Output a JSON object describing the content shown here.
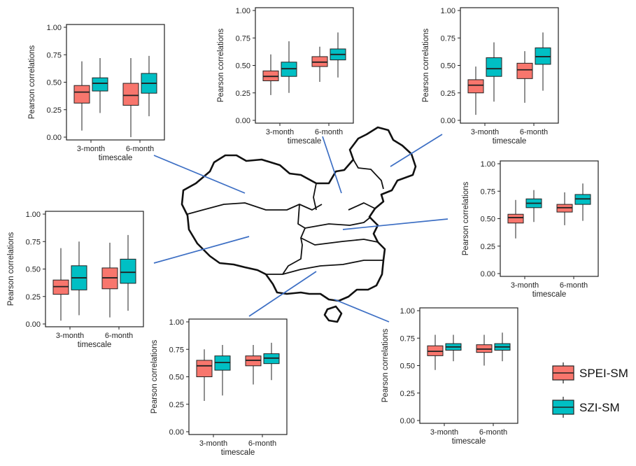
{
  "colors": {
    "spei": "#F8766D",
    "szi": "#00BFC4"
  },
  "legend": [
    {
      "name": "SPEI-SM",
      "color": "#F8766D"
    },
    {
      "name": "SZI-SM",
      "color": "#00BFC4"
    }
  ],
  "chart_data": [
    {
      "type": "box",
      "region": "northwest",
      "xlabel": "timescale",
      "ylabel": "Pearson correlations",
      "categories": [
        "3-month",
        "6-month"
      ],
      "ylim": [
        0,
        1
      ],
      "yticks": [
        "0.00",
        "0.25",
        "0.50",
        "0.75",
        "1.00"
      ],
      "series": [
        {
          "name": "SPEI-SM",
          "boxes": [
            {
              "min": 0.06,
              "q1": 0.31,
              "median": 0.41,
              "q3": 0.47,
              "max": 0.69
            },
            {
              "min": 0.0,
              "q1": 0.29,
              "median": 0.38,
              "q3": 0.49,
              "max": 0.72
            }
          ]
        },
        {
          "name": "SZI-SM",
          "boxes": [
            {
              "min": 0.22,
              "q1": 0.42,
              "median": 0.49,
              "q3": 0.54,
              "max": 0.72
            },
            {
              "min": 0.19,
              "q1": 0.4,
              "median": 0.49,
              "q3": 0.58,
              "max": 0.74
            }
          ]
        }
      ]
    },
    {
      "type": "box",
      "region": "north-central",
      "xlabel": "timescale",
      "ylabel": "Pearson correlations",
      "categories": [
        "3-month",
        "6-month"
      ],
      "ylim": [
        0,
        1
      ],
      "yticks": [
        "0.00",
        "0.25",
        "0.50",
        "0.75",
        "1.00"
      ],
      "series": [
        {
          "name": "SPEI-SM",
          "boxes": [
            {
              "min": 0.23,
              "q1": 0.36,
              "median": 0.4,
              "q3": 0.45,
              "max": 0.6
            },
            {
              "min": 0.35,
              "q1": 0.49,
              "median": 0.53,
              "q3": 0.58,
              "max": 0.67
            }
          ]
        },
        {
          "name": "SZI-SM",
          "boxes": [
            {
              "min": 0.25,
              "q1": 0.4,
              "median": 0.47,
              "q3": 0.53,
              "max": 0.72
            },
            {
              "min": 0.39,
              "q1": 0.55,
              "median": 0.6,
              "q3": 0.65,
              "max": 0.8
            }
          ]
        }
      ]
    },
    {
      "type": "box",
      "region": "northeast",
      "xlabel": "timescale",
      "ylabel": "Pearson correlations",
      "categories": [
        "3-month",
        "6-month"
      ],
      "ylim": [
        0,
        1
      ],
      "yticks": [
        "0.00",
        "0.25",
        "0.50",
        "0.75",
        "1.00"
      ],
      "series": [
        {
          "name": "SPEI-SM",
          "boxes": [
            {
              "min": 0.05,
              "q1": 0.25,
              "median": 0.32,
              "q3": 0.37,
              "max": 0.49
            },
            {
              "min": 0.16,
              "q1": 0.38,
              "median": 0.46,
              "q3": 0.52,
              "max": 0.63
            }
          ]
        },
        {
          "name": "SZI-SM",
          "boxes": [
            {
              "min": 0.17,
              "q1": 0.4,
              "median": 0.47,
              "q3": 0.57,
              "max": 0.71
            },
            {
              "min": 0.27,
              "q1": 0.51,
              "median": 0.58,
              "q3": 0.66,
              "max": 0.8
            }
          ]
        }
      ]
    },
    {
      "type": "box",
      "region": "east",
      "xlabel": "timescale",
      "ylabel": "Pearson correlations",
      "categories": [
        "3-month",
        "6-month"
      ],
      "ylim": [
        0,
        1
      ],
      "yticks": [
        "0.00",
        "0.25",
        "0.50",
        "0.75",
        "1.00"
      ],
      "series": [
        {
          "name": "SPEI-SM",
          "boxes": [
            {
              "min": 0.32,
              "q1": 0.46,
              "median": 0.51,
              "q3": 0.54,
              "max": 0.67
            },
            {
              "min": 0.44,
              "q1": 0.56,
              "median": 0.6,
              "q3": 0.63,
              "max": 0.74
            }
          ]
        },
        {
          "name": "SZI-SM",
          "boxes": [
            {
              "min": 0.47,
              "q1": 0.6,
              "median": 0.64,
              "q3": 0.68,
              "max": 0.76
            },
            {
              "min": 0.48,
              "q1": 0.63,
              "median": 0.68,
              "q3": 0.72,
              "max": 0.82
            }
          ]
        }
      ]
    },
    {
      "type": "box",
      "region": "west",
      "xlabel": "timescale",
      "ylabel": "Pearson correlations",
      "categories": [
        "3-month",
        "6-month"
      ],
      "ylim": [
        0,
        1
      ],
      "yticks": [
        "0.00",
        "0.25",
        "0.50",
        "0.75",
        "1.00"
      ],
      "series": [
        {
          "name": "SPEI-SM",
          "boxes": [
            {
              "min": 0.03,
              "q1": 0.27,
              "median": 0.34,
              "q3": 0.4,
              "max": 0.69
            },
            {
              "min": 0.06,
              "q1": 0.32,
              "median": 0.42,
              "q3": 0.51,
              "max": 0.74
            }
          ]
        },
        {
          "name": "SZI-SM",
          "boxes": [
            {
              "min": 0.08,
              "q1": 0.31,
              "median": 0.42,
              "q3": 0.53,
              "max": 0.75
            },
            {
              "min": 0.12,
              "q1": 0.37,
              "median": 0.47,
              "q3": 0.59,
              "max": 0.81
            }
          ]
        }
      ]
    },
    {
      "type": "box",
      "region": "southwest",
      "xlabel": "timescale",
      "ylabel": "Pearson correlations",
      "categories": [
        "3-month",
        "6-month"
      ],
      "ylim": [
        0,
        1
      ],
      "yticks": [
        "0.00",
        "0.25",
        "0.50",
        "0.75",
        "1.00"
      ],
      "series": [
        {
          "name": "SPEI-SM",
          "boxes": [
            {
              "min": 0.28,
              "q1": 0.5,
              "median": 0.6,
              "q3": 0.65,
              "max": 0.75
            },
            {
              "min": 0.43,
              "q1": 0.6,
              "median": 0.65,
              "q3": 0.69,
              "max": 0.79
            }
          ]
        },
        {
          "name": "SZI-SM",
          "boxes": [
            {
              "min": 0.33,
              "q1": 0.56,
              "median": 0.63,
              "q3": 0.69,
              "max": 0.79
            },
            {
              "min": 0.47,
              "q1": 0.62,
              "median": 0.67,
              "q3": 0.71,
              "max": 0.81
            }
          ]
        }
      ]
    },
    {
      "type": "box",
      "region": "south",
      "xlabel": "timescale",
      "ylabel": "Pearson correlations",
      "categories": [
        "3-month",
        "6-month"
      ],
      "ylim": [
        0,
        1
      ],
      "yticks": [
        "0.00",
        "0.25",
        "0.50",
        "0.75",
        "1.00"
      ],
      "series": [
        {
          "name": "SPEI-SM",
          "boxes": [
            {
              "min": 0.46,
              "q1": 0.59,
              "median": 0.63,
              "q3": 0.68,
              "max": 0.78
            },
            {
              "min": 0.5,
              "q1": 0.62,
              "median": 0.65,
              "q3": 0.69,
              "max": 0.78
            }
          ]
        },
        {
          "name": "SZI-SM",
          "boxes": [
            {
              "min": 0.54,
              "q1": 0.64,
              "median": 0.67,
              "q3": 0.7,
              "max": 0.78
            },
            {
              "min": 0.54,
              "q1": 0.64,
              "median": 0.67,
              "q3": 0.7,
              "max": 0.8
            }
          ]
        }
      ]
    }
  ]
}
